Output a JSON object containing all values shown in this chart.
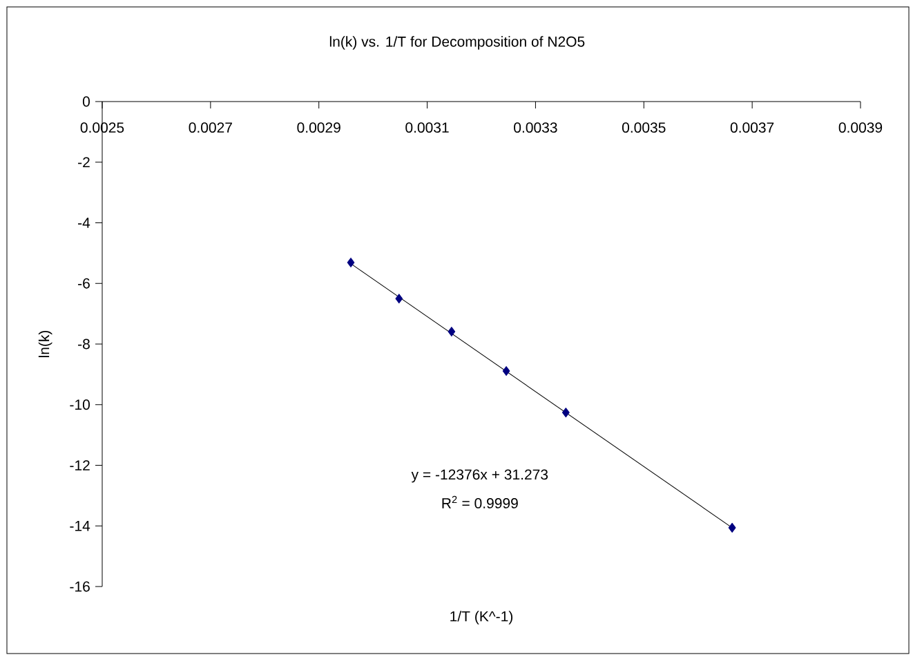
{
  "chart_data": {
    "type": "scatter",
    "title": "ln(k) vs. 1/T for Decomposition of N2O5",
    "xlabel": "1/T (K^-1)",
    "ylabel": "ln(k)",
    "annotations": [
      "y = -12376x + 31.273",
      "R$^{2}$ = 0.9999"
    ],
    "xlim": [
      0.0025,
      0.0039
    ],
    "ylim": [
      -16,
      0
    ],
    "xticks": [
      0.0025,
      0.0027,
      0.0029,
      0.0031,
      0.0033,
      0.0035,
      0.0037,
      0.0039
    ],
    "yticks": [
      -16,
      -14,
      -12,
      -10,
      -8,
      -6,
      -4,
      -2,
      0
    ],
    "marker": "diamond",
    "grid": false,
    "series": [
      {
        "type": "scatter",
        "color": "#000080",
        "x": [
          0.002959,
          0.003048,
          0.003145,
          0.003246,
          0.003356,
          0.003663
        ],
        "values": [
          -5.31,
          -6.5,
          -7.59,
          -8.89,
          -10.26,
          -14.06
        ]
      },
      {
        "type": "line",
        "color": "#000000",
        "marker": "none",
        "x": [
          0.002959,
          0.003663
        ],
        "values": [
          -5.35,
          -14.06
        ]
      }
    ]
  }
}
